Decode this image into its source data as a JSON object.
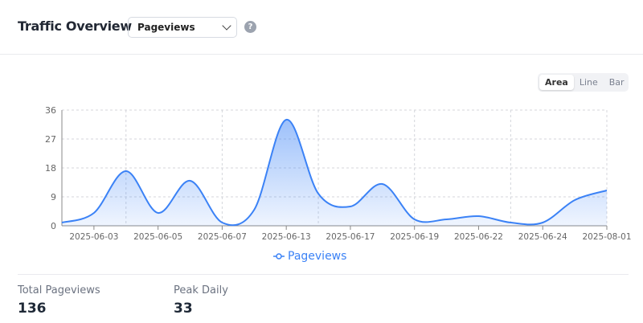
{
  "header": {
    "title": "Traffic Overview",
    "metric_select": "Pageviews",
    "help_icon": "question-circle-icon"
  },
  "chart_toggle": {
    "options": [
      "Area",
      "Line",
      "Bar"
    ],
    "active": "Area"
  },
  "chart_data": {
    "type": "area",
    "categories": [
      "",
      "2025-06-03",
      "",
      "2025-06-05",
      "",
      "2025-06-07",
      "",
      "2025-06-13",
      "",
      "2025-06-17",
      "",
      "2025-06-19",
      "",
      "2025-06-22",
      "",
      "2025-06-24",
      "",
      "2025-08-01"
    ],
    "series": [
      {
        "name": "Pageviews",
        "values": [
          1,
          4,
          17,
          4,
          14,
          1,
          5,
          33,
          10,
          6,
          13,
          2,
          2,
          3,
          1,
          1,
          8,
          11
        ]
      }
    ],
    "yticks": [
      0,
      9,
      18,
      27,
      36
    ],
    "ylim": [
      0,
      36
    ],
    "grid": true,
    "legend": "bottom",
    "color": "#3b82f6"
  },
  "stats": [
    {
      "label": "Total Pageviews",
      "value": "136"
    },
    {
      "label": "Peak Daily",
      "value": "33"
    }
  ]
}
